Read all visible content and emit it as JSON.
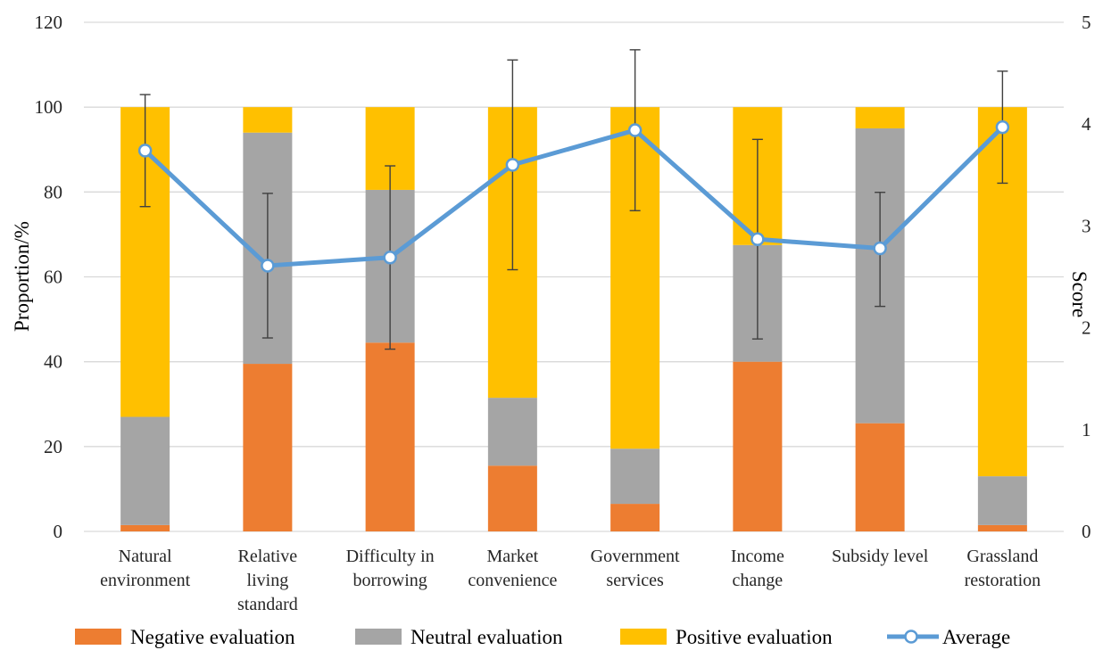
{
  "chart_data": {
    "type": "bar",
    "stacked": true,
    "categories": [
      "Natural environment",
      "Relative living standard",
      "Difficulty in borrowing",
      "Market convenience",
      "Government services",
      "Income change",
      "Subsidy level",
      "Grassland restoration"
    ],
    "series": [
      {
        "name": "Negative evaluation",
        "color": "#ED7D31",
        "values": [
          1.5,
          39.5,
          44.5,
          15.5,
          6.5,
          40,
          25.5,
          1.5
        ]
      },
      {
        "name": "Neutral evaluation",
        "color": "#A5A5A5",
        "values": [
          25.5,
          54.5,
          36,
          16,
          13,
          27.5,
          69.5,
          11.5
        ]
      },
      {
        "name": "Positive evaluation",
        "color": "#FFC000",
        "values": [
          73,
          6,
          19.5,
          68.5,
          80.5,
          32.5,
          5,
          87
        ]
      }
    ],
    "line_series": {
      "name": "Average",
      "axis": "right",
      "color": "#5B9BD5",
      "values": [
        3.74,
        2.61,
        2.69,
        3.6,
        3.94,
        2.87,
        2.78,
        3.97
      ],
      "error_low": [
        3.19,
        1.9,
        1.79,
        2.57,
        3.15,
        1.89,
        2.21,
        3.42
      ],
      "error_high": [
        4.29,
        3.32,
        3.59,
        4.63,
        4.73,
        3.85,
        3.33,
        4.52
      ]
    },
    "ylabel": "Proportion/%",
    "y2label": "Score",
    "ylim": [
      0,
      120
    ],
    "y2lim": [
      0,
      5
    ],
    "yticks": [
      0,
      20,
      40,
      60,
      80,
      100,
      120
    ],
    "y2ticks": [
      0,
      1,
      2,
      3,
      4,
      5
    ],
    "grid": true,
    "legend_position": "bottom"
  }
}
